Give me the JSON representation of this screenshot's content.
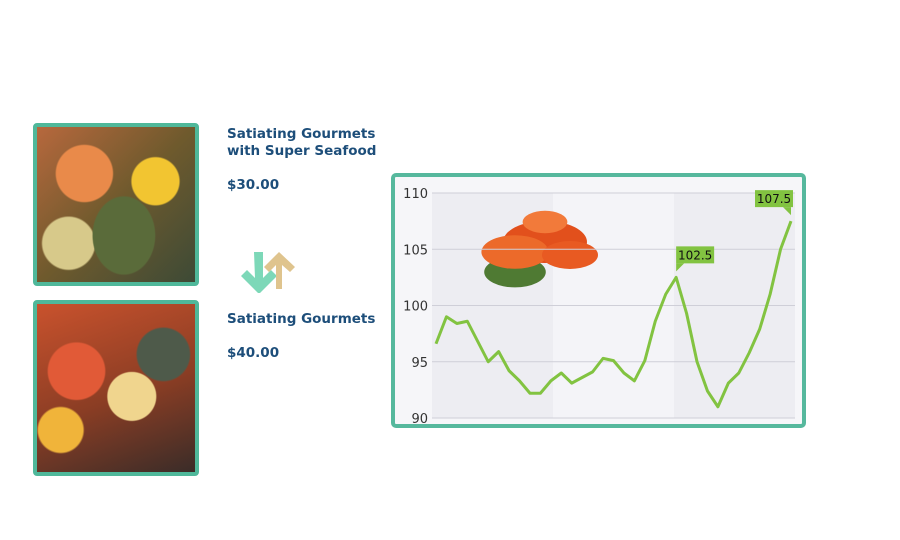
{
  "products": [
    {
      "title_line1": "Satiating Gourmets",
      "title_line2": "with Super Seafood",
      "price": "$30.00"
    },
    {
      "title_line1": "Satiating Gourmets",
      "price": "$40.00"
    }
  ],
  "icons": {
    "swap": "swap-arrows-icon",
    "down_color": "#7dd8b8",
    "up_color": "#dfc48e"
  },
  "colors": {
    "accent": "#56b89d",
    "line": "#82c341",
    "text": "#1d4e7a"
  },
  "chart_data": {
    "type": "line",
    "title": "",
    "xlabel": "",
    "ylabel": "",
    "ylim": [
      90,
      110
    ],
    "yticks": [
      90,
      95,
      100,
      105,
      110
    ],
    "grid": true,
    "values": [
      96.6,
      99.0,
      98.4,
      98.6,
      96.8,
      95.0,
      95.9,
      94.2,
      93.3,
      92.2,
      92.2,
      93.3,
      94.0,
      93.1,
      93.6,
      94.1,
      95.3,
      95.1,
      94.0,
      93.3,
      95.1,
      98.6,
      101.0,
      102.5,
      99.3,
      95.0,
      92.4,
      91.0,
      93.1,
      94.0,
      95.8,
      97.9,
      101.0,
      105.0,
      107.5
    ],
    "annotations": [
      {
        "index": 23,
        "label": "102.5"
      },
      {
        "index": 34,
        "label": "107.5"
      }
    ]
  }
}
